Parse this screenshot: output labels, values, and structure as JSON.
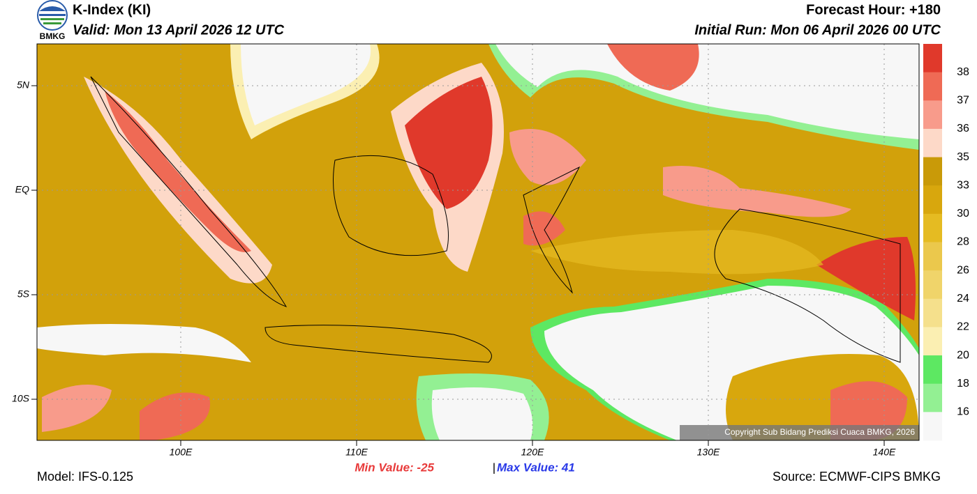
{
  "header": {
    "logo_text": "BMKG",
    "title": "K-Index (KI)",
    "valid": "Valid: Mon 13 April 2026 12 UTC",
    "forecast_hour": "Forecast Hour: +180",
    "initial_run": "Initial Run: Mon 06 April 2026 00 UTC"
  },
  "axes": {
    "lat_labels": [
      "5N",
      "EQ",
      "5S",
      "10S"
    ],
    "lon_labels": [
      "100E",
      "110E",
      "120E",
      "130E",
      "140E"
    ]
  },
  "colorbar": {
    "levels": [
      38,
      37,
      36,
      35,
      33,
      30,
      28,
      26,
      24,
      22,
      20,
      18,
      16
    ],
    "colors": [
      "#e0392b",
      "#ef6a55",
      "#f89b8b",
      "#fdd9c8",
      "#c99a08",
      "#d8a70d",
      "#e5bb22",
      "#ebc84c",
      "#f0d46a",
      "#f5e08c",
      "#fbefb2",
      "#5de862",
      "#93f093",
      "#f7f7f7"
    ]
  },
  "map": {
    "copyright": "Copyright Sub Bidang Prediksi Cuaca BMKG, 2026"
  },
  "footer": {
    "min_value": "Min Value: -25",
    "separator": "|",
    "max_value": "Max Value:  41",
    "model": "Model: IFS-0.125",
    "source": "Source: ECMWF-CIPS BMKG"
  }
}
